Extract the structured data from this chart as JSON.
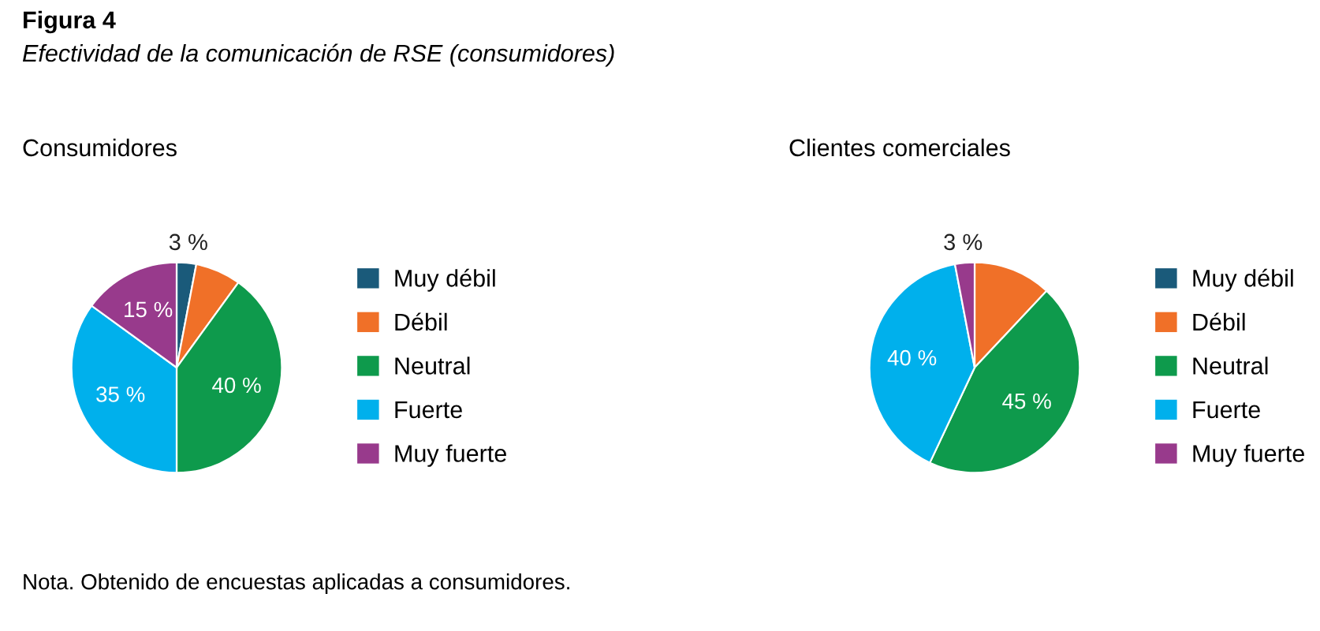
{
  "chart_data": [
    {
      "type": "pie",
      "title": "Consumidores",
      "categories": [
        "Muy débil",
        "Débil",
        "Neutral",
        "Fuerte",
        "Muy fuerte"
      ],
      "values": [
        3,
        7,
        40,
        35,
        15
      ],
      "value_labels": [
        "3 %",
        null,
        "40 %",
        "35 %",
        "15 %"
      ],
      "colors": [
        "#1a5a7a",
        "#f07028",
        "#0e9a4c",
        "#00b0ec",
        "#983a8c"
      ],
      "legend": "right",
      "annotations": [
        "Figura 4",
        "Efectividad de la comunicación de RSE (consumidores)",
        "Nota. Obtenido de encuestas aplicadas a consumidores."
      ]
    },
    {
      "type": "pie",
      "title": "Clientes comerciales",
      "categories": [
        "Muy débil",
        "Débil",
        "Neutral",
        "Fuerte",
        "Muy fuerte"
      ],
      "values": [
        0,
        12,
        45,
        40,
        3
      ],
      "value_labels": [
        null,
        null,
        "45 %",
        "40 %",
        "3 %"
      ],
      "colors": [
        "#1a5a7a",
        "#f07028",
        "#0e9a4c",
        "#00b0ec",
        "#983a8c"
      ],
      "legend": "right"
    }
  ]
}
